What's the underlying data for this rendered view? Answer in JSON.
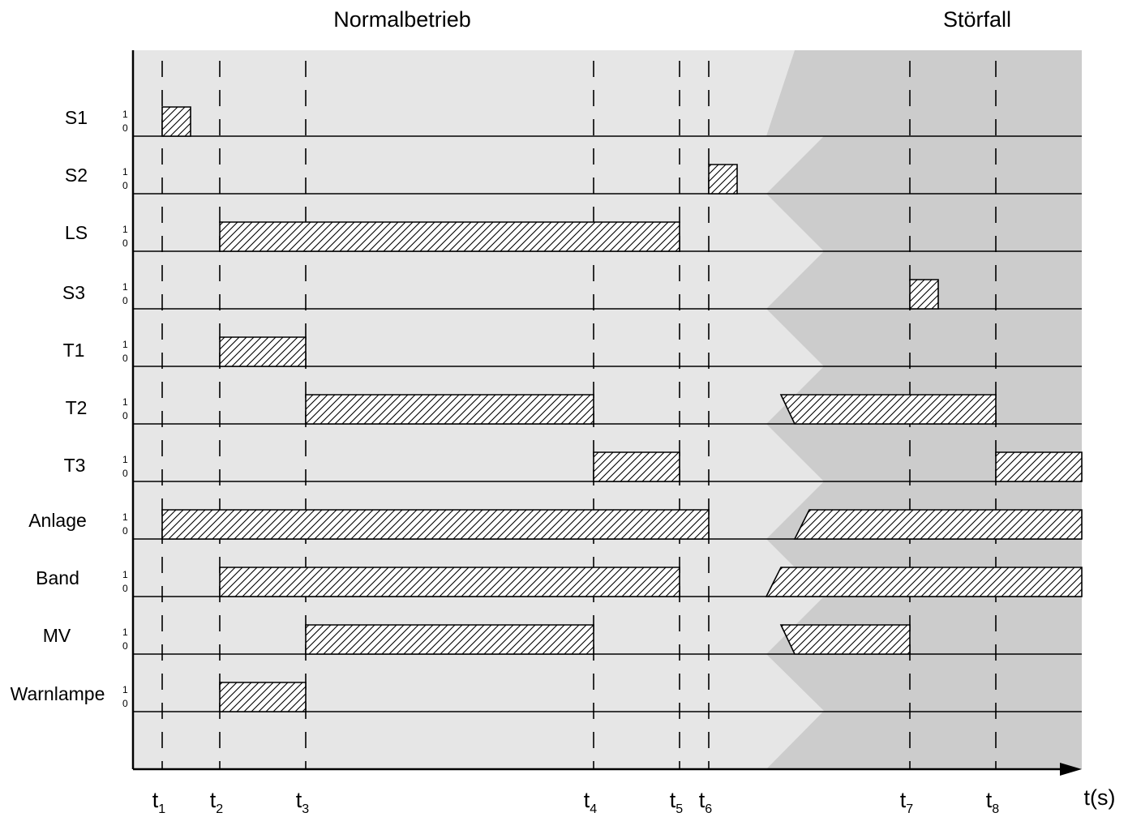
{
  "sections": {
    "normal": "Normalbetrieb",
    "fault": "Störfall"
  },
  "axis": {
    "x_unit_label": "t(s)",
    "level_high": "1",
    "level_low": "0"
  },
  "time_markers": [
    {
      "key": "t1",
      "main": "t",
      "sub": "1"
    },
    {
      "key": "t2",
      "main": "t",
      "sub": "2"
    },
    {
      "key": "t3",
      "main": "t",
      "sub": "3"
    },
    {
      "key": "t4",
      "main": "t",
      "sub": "4"
    },
    {
      "key": "t5",
      "main": "t",
      "sub": "5"
    },
    {
      "key": "t6",
      "main": "t",
      "sub": "6"
    },
    {
      "key": "t7",
      "main": "t",
      "sub": "7"
    },
    {
      "key": "t8",
      "main": "t",
      "sub": "8"
    }
  ],
  "signals": [
    {
      "name": "S1",
      "pulses": [
        {
          "from": "t1",
          "to": "t1+"
        }
      ]
    },
    {
      "name": "S2",
      "pulses": [
        {
          "from": "t6",
          "to": "t6+"
        }
      ]
    },
    {
      "name": "LS",
      "pulses": [
        {
          "from": "t2",
          "to": "t5"
        }
      ]
    },
    {
      "name": "S3",
      "pulses": [
        {
          "from": "t7",
          "to": "t7+"
        }
      ]
    },
    {
      "name": "T1",
      "pulses": [
        {
          "from": "t2",
          "to": "t3"
        }
      ]
    },
    {
      "name": "T2",
      "pulses": [
        {
          "from": "t3",
          "to": "t4"
        },
        {
          "from": "fault",
          "to": "t8"
        }
      ]
    },
    {
      "name": "T3",
      "pulses": [
        {
          "from": "t4",
          "to": "t5"
        },
        {
          "from": "t8",
          "to": "end"
        }
      ]
    },
    {
      "name": "Anlage",
      "pulses": [
        {
          "from": "t1",
          "to": "t6"
        },
        {
          "from": "fault",
          "to": "end"
        }
      ]
    },
    {
      "name": "Band",
      "pulses": [
        {
          "from": "t2",
          "to": "t5"
        },
        {
          "from": "fault",
          "to": "end"
        }
      ]
    },
    {
      "name": "MV",
      "pulses": [
        {
          "from": "t3",
          "to": "t4"
        },
        {
          "from": "fault",
          "to": "t7"
        }
      ]
    },
    {
      "name": "Warnlampe",
      "pulses": [
        {
          "from": "t2",
          "to": "t3"
        }
      ]
    }
  ],
  "colors": {
    "normal_background": "#e6e6e6",
    "fault_background": "#cccccc",
    "line": "#000000"
  }
}
